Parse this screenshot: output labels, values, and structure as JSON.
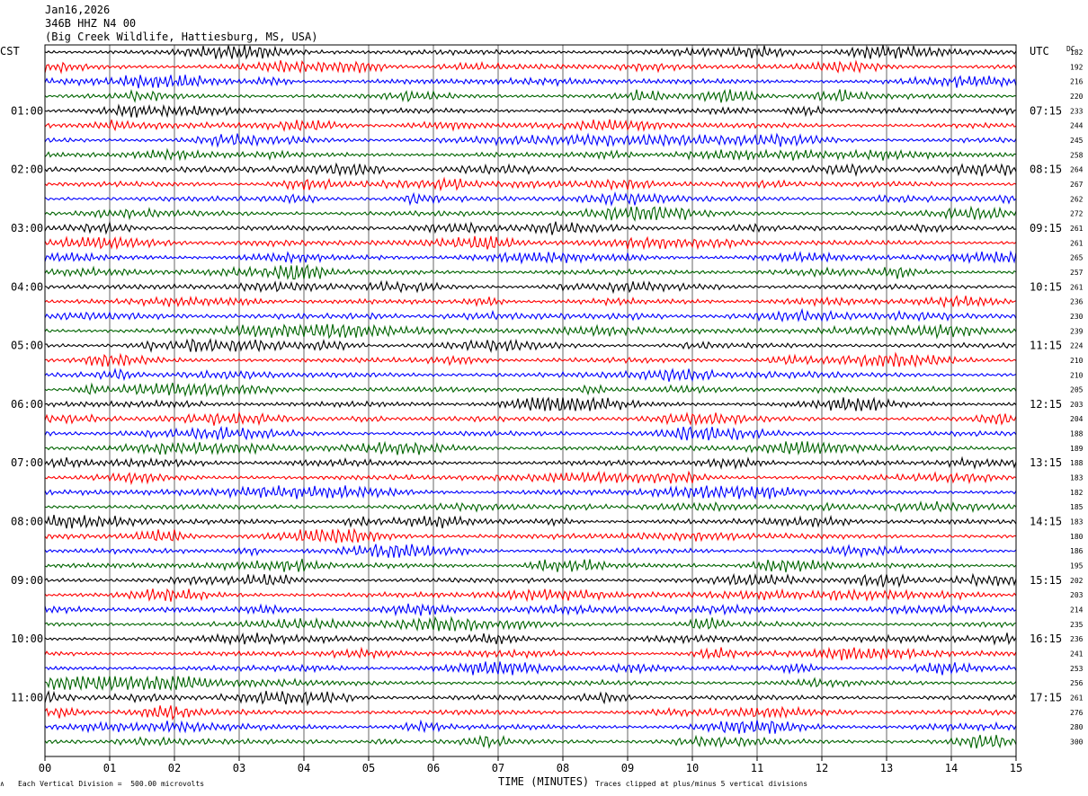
{
  "header": {
    "date": "Jan16,2026",
    "station": "346B HHZ N4 00",
    "location": "(Big Creek Wildlife, Hattiesburg, MS, USA)"
  },
  "left_timezone": "CST",
  "right_timezone": "UTC",
  "dc_label": "DC",
  "footer": {
    "scale_note": "Each Vertical Division =  500.00 microvolts",
    "xlabel": "TIME (MINUTES)",
    "clip_note": "Traces clipped at plus/minus 5 vertical divisions"
  },
  "colors": {
    "trace_cycle": [
      "#000000",
      "#ff0000",
      "#0000ff",
      "#006400"
    ],
    "grid": "#000000"
  },
  "chart_data": {
    "type": "line",
    "title": "346B HHZ N4 00",
    "xlabel": "TIME (MINUTES)",
    "xlim": [
      0,
      15
    ],
    "x_ticks": [
      "00",
      "01",
      "02",
      "03",
      "04",
      "05",
      "06",
      "07",
      "08",
      "09",
      "10",
      "11",
      "12",
      "13",
      "14",
      "15"
    ],
    "grid": true,
    "traces_per_hour": 4,
    "hour_labels_left": [
      "01:00",
      "02:00",
      "03:00",
      "04:00",
      "05:00",
      "06:00",
      "07:00",
      "08:00",
      "09:00",
      "10:00",
      "11:00"
    ],
    "hour_labels_right": [
      "07:15",
      "08:15",
      "09:15",
      "10:15",
      "11:15",
      "12:15",
      "13:15",
      "14:15",
      "15:15",
      "16:15",
      "17:15"
    ],
    "dc_offsets": [
      182,
      192,
      216,
      220,
      233,
      244,
      245,
      258,
      264,
      267,
      262,
      272,
      261,
      261,
      265,
      257,
      261,
      236,
      230,
      239,
      224,
      210,
      210,
      205,
      203,
      204,
      188,
      189,
      188,
      183,
      182,
      185,
      183,
      180,
      186,
      195,
      202,
      203,
      214,
      235,
      236,
      241,
      253,
      256,
      261,
      276,
      280,
      300
    ]
  }
}
